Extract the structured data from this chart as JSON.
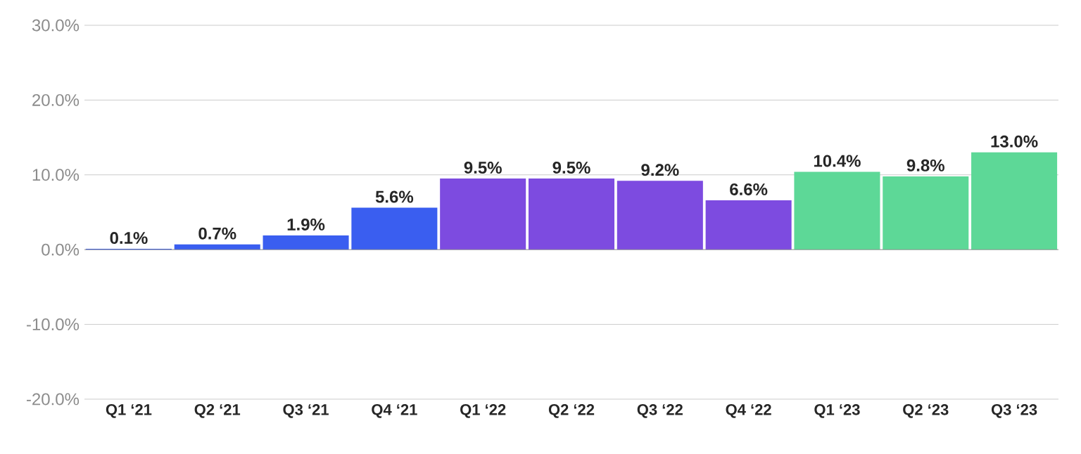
{
  "chart_data": {
    "type": "bar",
    "categories": [
      "Q1 ‘21",
      "Q2 ‘21",
      "Q3 ‘21",
      "Q4 ‘21",
      "Q1 ‘22",
      "Q2 ‘22",
      "Q3 ‘22",
      "Q4 ‘22",
      "Q1 ‘23",
      "Q2 ‘23",
      "Q3 ‘23"
    ],
    "values": [
      0.1,
      0.7,
      1.9,
      5.6,
      9.5,
      9.5,
      9.2,
      6.6,
      10.4,
      9.8,
      13.0
    ],
    "value_labels": [
      "0.1%",
      "0.7%",
      "1.9%",
      "5.6%",
      "9.5%",
      "9.5%",
      "9.2%",
      "6.6%",
      "10.4%",
      "9.8%",
      "13.0%"
    ],
    "colors": [
      "#3a5ef0",
      "#3a5ef0",
      "#3a5ef0",
      "#3a5ef0",
      "#7d4be0",
      "#7d4be0",
      "#7d4be0",
      "#7d4be0",
      "#5dd897",
      "#5dd897",
      "#5dd897"
    ],
    "ylim": [
      -20,
      30
    ],
    "yticks": [
      {
        "value": -20,
        "label": "-20.0%"
      },
      {
        "value": -10,
        "label": "-10.0%"
      },
      {
        "value": 0,
        "label": "0.0%"
      },
      {
        "value": 10,
        "label": "10.0%"
      },
      {
        "value": 20,
        "label": "20.0%"
      },
      {
        "value": 30,
        "label": "30.0%"
      }
    ],
    "grid": "y"
  }
}
